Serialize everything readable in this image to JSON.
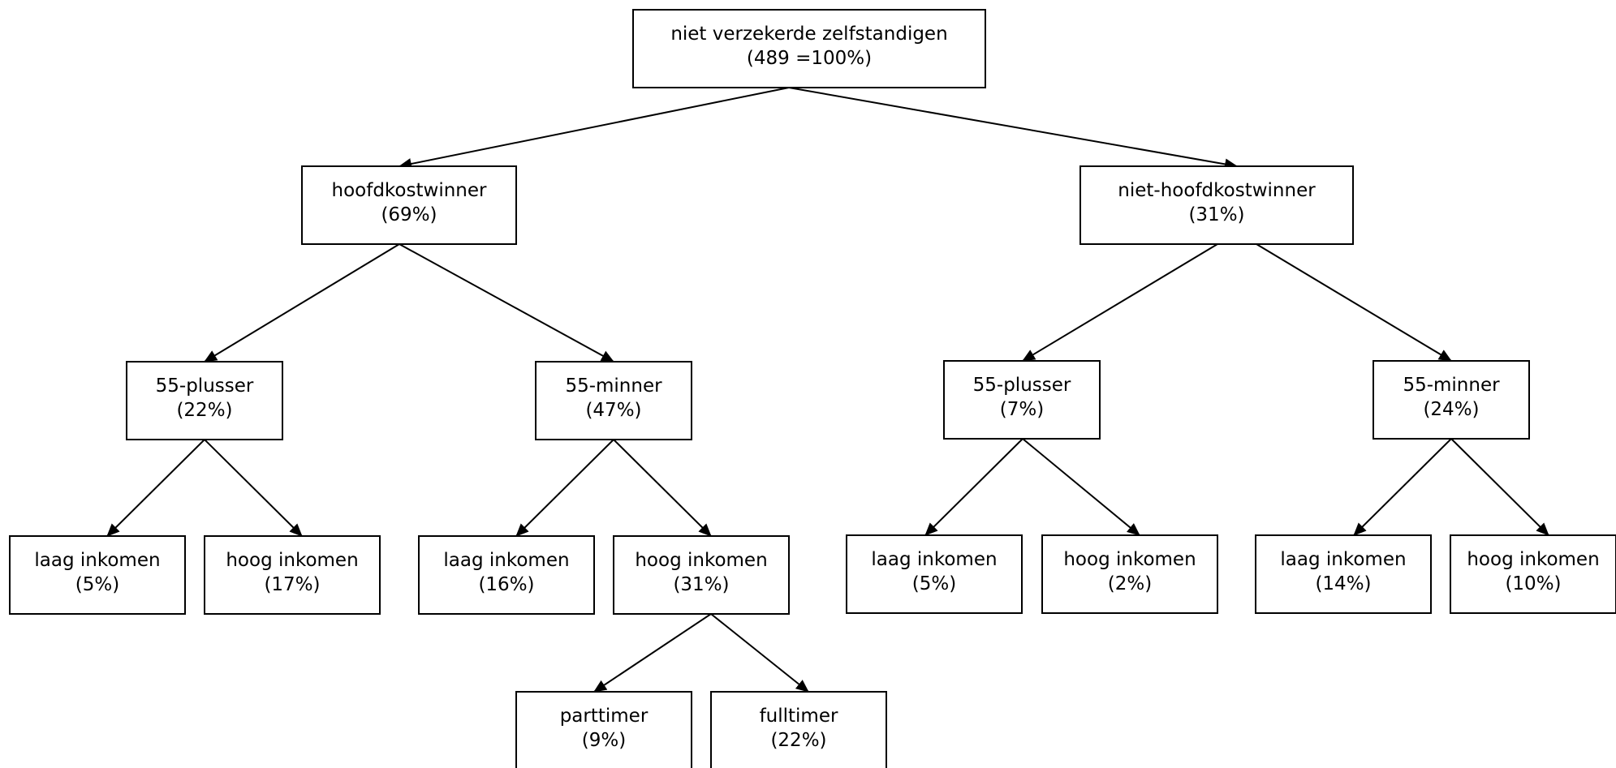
{
  "colors": {
    "background": "#ffffff",
    "box_stroke": "#000000",
    "text": "#000000",
    "edge": "#000000"
  },
  "nodes": {
    "root": {
      "label": "niet verzekerde zelfstandigen",
      "value": "(489 =100%)"
    },
    "hoofdkostwinner": {
      "label": "hoofdkostwinner",
      "value": "(69%)"
    },
    "niet_hoofdkostwinner": {
      "label": "niet-hoofdkostwinner",
      "value": "(31%)"
    },
    "hk_55_plusser": {
      "label": "55-plusser",
      "value": "(22%)"
    },
    "hk_55_minner": {
      "label": "55-minner",
      "value": "(47%)"
    },
    "nhk_55_plusser": {
      "label": "55-plusser",
      "value": "(7%)"
    },
    "nhk_55_minner": {
      "label": "55-minner",
      "value": "(24%)"
    },
    "hk_plus_laag": {
      "label": "laag inkomen",
      "value": "(5%)"
    },
    "hk_plus_hoog": {
      "label": "hoog inkomen",
      "value": "(17%)"
    },
    "hk_min_laag": {
      "label": "laag inkomen",
      "value": "(16%)"
    },
    "hk_min_hoog": {
      "label": "hoog inkomen",
      "value": "(31%)"
    },
    "nhk_plus_laag": {
      "label": "laag inkomen",
      "value": "(5%)"
    },
    "nhk_plus_hoog": {
      "label": "hoog inkomen",
      "value": "(2%)"
    },
    "nhk_min_laag": {
      "label": "laag inkomen",
      "value": "(14%)"
    },
    "nhk_min_hoog": {
      "label": "hoog inkomen",
      "value": "(10%)"
    },
    "parttimer": {
      "label": "parttimer",
      "value": "(9%)"
    },
    "fulltimer": {
      "label": "fulltimer",
      "value": "(22%)"
    }
  },
  "edges": [
    [
      "root",
      "hoofdkostwinner"
    ],
    [
      "root",
      "niet_hoofdkostwinner"
    ],
    [
      "hoofdkostwinner",
      "hk_55_plusser"
    ],
    [
      "hoofdkostwinner",
      "hk_55_minner"
    ],
    [
      "niet_hoofdkostwinner",
      "nhk_55_plusser"
    ],
    [
      "niet_hoofdkostwinner",
      "nhk_55_minner"
    ],
    [
      "hk_55_plusser",
      "hk_plus_laag"
    ],
    [
      "hk_55_plusser",
      "hk_plus_hoog"
    ],
    [
      "hk_55_minner",
      "hk_min_laag"
    ],
    [
      "hk_55_minner",
      "hk_min_hoog"
    ],
    [
      "nhk_55_plusser",
      "nhk_plus_laag"
    ],
    [
      "nhk_55_plusser",
      "nhk_plus_hoog"
    ],
    [
      "nhk_55_minner",
      "nhk_min_laag"
    ],
    [
      "nhk_55_minner",
      "nhk_min_hoog"
    ],
    [
      "hk_min_hoog",
      "parttimer"
    ],
    [
      "hk_min_hoog",
      "fulltimer"
    ]
  ]
}
